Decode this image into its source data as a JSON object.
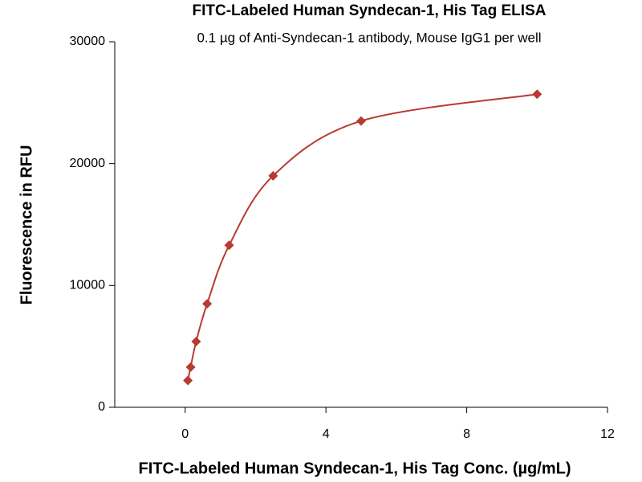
{
  "chart_data": {
    "type": "scatter",
    "title": "FITC-Labeled Human Syndecan-1, His Tag ELISA",
    "subtitle": "0.1 µg of Anti-Syndecan-1 antibody, Mouse IgG1 per well",
    "x_label": "FITC-Labeled Human Syndecan-1, His Tag Conc. (µg/mL)",
    "y_label": "Fluorescence in RFU",
    "x": [
      0.078,
      0.156,
      0.3125,
      0.625,
      1.25,
      2.5,
      5,
      10
    ],
    "values": [
      2200,
      3300,
      5400,
      8500,
      13300,
      19000,
      23500,
      25700
    ],
    "color": "#b93a33",
    "trendline": true,
    "xlim": [
      -2,
      12
    ],
    "xticks": [
      0,
      4,
      8,
      12
    ],
    "ylim": [
      0,
      30000
    ],
    "yticks": [
      0,
      10000,
      20000,
      30000
    ],
    "grid": false
  }
}
